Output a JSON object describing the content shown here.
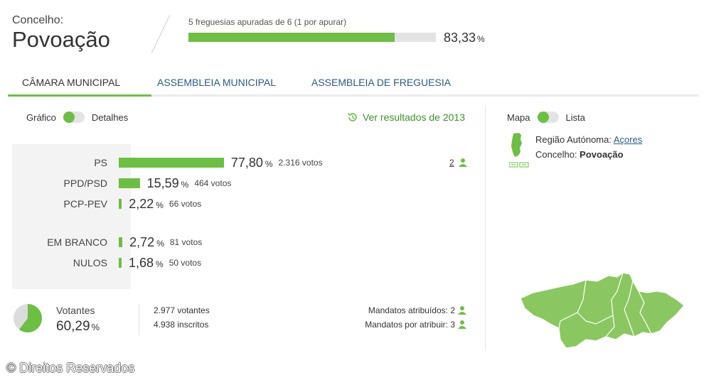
{
  "header": {
    "label": "Concelho:",
    "title": "Povoação",
    "progress_caption": "5 freguesias apuradas de 6 (1 por apurar)",
    "progress_value": 83.33,
    "progress_pct": "83,33",
    "pct_unit": "%"
  },
  "tabs": [
    {
      "label": "CÂMARA MUNICIPAL",
      "active": true
    },
    {
      "label": "ASSEMBLEIA MUNICIPAL",
      "active": false
    },
    {
      "label": "ASSEMBLEIA DE FREGUESIA",
      "active": false
    }
  ],
  "view_toggle": {
    "left": "Gráfico",
    "right": "Detalhes"
  },
  "prev_results": "Ver resultados de 2013",
  "parties": [
    {
      "name": "PS",
      "value": 77.8,
      "pct": "77,80",
      "votes": "2.316 votos"
    },
    {
      "name": "PPD/PSD",
      "value": 15.59,
      "pct": "15,59",
      "votes": "464 votos"
    },
    {
      "name": "PCP-PEV",
      "value": 2.22,
      "pct": "2,22",
      "votes": "66 votos"
    },
    {
      "name": "EM BRANCO",
      "value": 2.72,
      "pct": "2,72",
      "votes": "81 votos"
    },
    {
      "name": "NULOS",
      "value": 1.68,
      "pct": "1,68",
      "votes": "50 votos"
    }
  ],
  "seats_ps": "2",
  "turnout": {
    "label": "Votantes",
    "value": 60.29,
    "pct": "60,29",
    "voters": "2.977 votantes",
    "registered": "4.938 inscritos"
  },
  "mandates": {
    "assigned": "Mandatos atribuídos: 2",
    "pending": "Mandatos por atribuir: 3"
  },
  "map_toggle": {
    "left": "Mapa",
    "right": "Lista"
  },
  "region": {
    "label": "Região Autónoma:",
    "value": "Açores",
    "council_label": "Concelho:",
    "council_value": "Povoação"
  },
  "copyright": "© Direitos Reservados",
  "colors": {
    "accent": "#6cbf42",
    "link": "#2a5b80",
    "track": "#e3e3e3"
  }
}
